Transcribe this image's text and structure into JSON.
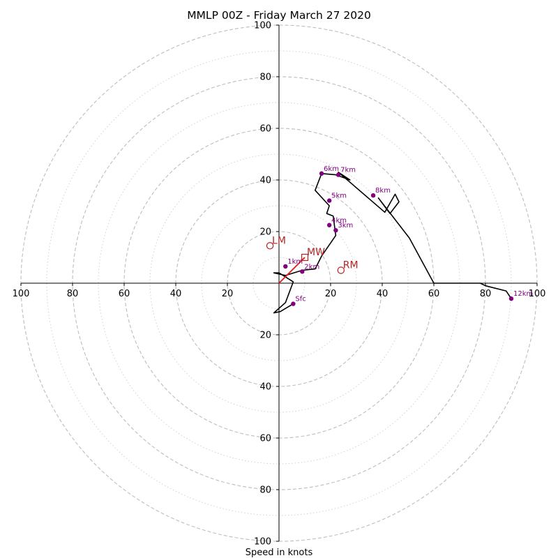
{
  "chart_data": {
    "type": "line",
    "title": "MMLP 00Z - Friday March 27 2020",
    "xlabel": "Speed in knots",
    "ylabel": "",
    "xlim": [
      -100,
      100
    ],
    "ylim": [
      -100,
      100
    ],
    "rings_dashed": [
      20,
      40,
      60,
      80,
      100
    ],
    "rings_dotted": [
      10,
      30,
      50,
      70,
      90
    ],
    "x_tick_labels": [
      "100",
      "80",
      "60",
      "40",
      "20",
      "20",
      "40",
      "60",
      "80",
      "100"
    ],
    "x_tick_values": [
      -100,
      -80,
      -60,
      -40,
      -20,
      20,
      40,
      60,
      80,
      100
    ],
    "y_tick_labels": [
      "100",
      "80",
      "60",
      "40",
      "20",
      "20",
      "40",
      "60",
      "80",
      "100"
    ],
    "y_tick_values": [
      100,
      80,
      60,
      40,
      20,
      -20,
      -40,
      -60,
      -80,
      -100
    ],
    "series": [
      {
        "color": "#000000",
        "x": [
          5.5,
          0.5,
          -2,
          2.5,
          5.5,
          0,
          -2,
          2.5,
          9,
          14,
          16.5,
          22,
          21,
          18.5,
          19.5,
          14,
          16.5,
          22,
          27.5,
          23,
          41,
          45,
          46.5,
          43,
          38.5,
          50.5,
          60,
          78,
          80,
          88,
          90
        ],
        "y": [
          -8,
          -11,
          -11.5,
          -7.5,
          0.5,
          4,
          4,
          3,
          5,
          5.5,
          10.5,
          18.5,
          26,
          27,
          30,
          36,
          42.5,
          42,
          40,
          43,
          27.5,
          34.5,
          31.5,
          27,
          33,
          17.5,
          0,
          0,
          -1,
          -3,
          -6
        ]
      },
      {
        "color": "#e31a1c",
        "x": [
          0,
          10
        ],
        "y": [
          0,
          10
        ]
      }
    ],
    "height_points": [
      {
        "label": "Sfc",
        "x": 5.5,
        "y": -8
      },
      {
        "label": "1km",
        "x": 2.5,
        "y": 6.5
      },
      {
        "label": "2km",
        "x": 9,
        "y": 4.5
      },
      {
        "label": "3km",
        "x": 22,
        "y": 20.5
      },
      {
        "label": "4km",
        "x": 19.5,
        "y": 22.5
      },
      {
        "label": "5km",
        "x": 19.5,
        "y": 32
      },
      {
        "label": "6km",
        "x": 16.5,
        "y": 42.5
      },
      {
        "label": "7km",
        "x": 23,
        "y": 42
      },
      {
        "label": "8km",
        "x": 36.5,
        "y": 34
      },
      {
        "label": "12km",
        "x": 90,
        "y": -6
      }
    ],
    "motion_points": [
      {
        "label": "LM",
        "x": -3.5,
        "y": 14.5,
        "marker": "circle"
      },
      {
        "label": "MW",
        "x": 10,
        "y": 10,
        "marker": "square"
      },
      {
        "label": "RM",
        "x": 24,
        "y": 5,
        "marker": "circle"
      }
    ],
    "grid": true,
    "legend": "none"
  }
}
